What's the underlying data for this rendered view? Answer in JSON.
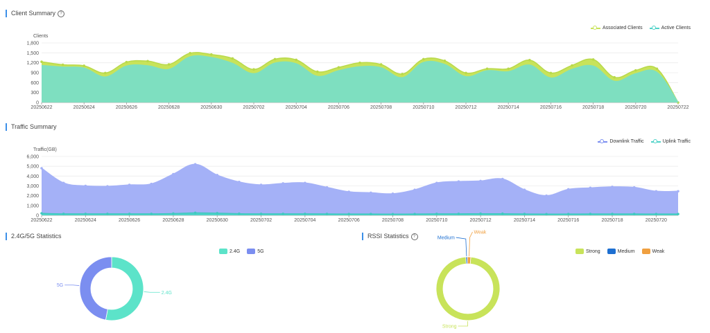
{
  "client_summary": {
    "title": "Client Summary",
    "help_icon": "question-circle-icon",
    "legend": [
      {
        "label": "Associated Clients",
        "color": "#c8e35a"
      },
      {
        "label": "Active Clients",
        "color": "#4fd2c8"
      }
    ],
    "chart_data": {
      "type": "area",
      "ylabel": "Clients",
      "ylim": [
        0,
        1800
      ],
      "yticks": [
        "0",
        "300",
        "600",
        "900",
        "1,200",
        "1,500",
        "1,800"
      ],
      "x": [
        "20250622",
        "20250623",
        "20250624",
        "20250625",
        "20250626",
        "20250627",
        "20250628",
        "20250629",
        "20250630",
        "20250701",
        "20250702",
        "20250703",
        "20250704",
        "20250705",
        "20250706",
        "20250707",
        "20250708",
        "20250709",
        "20250710",
        "20250711",
        "20250712",
        "20250713",
        "20250714",
        "20250715",
        "20250716",
        "20250717",
        "20250718",
        "20250719",
        "20250720",
        "20250721",
        "20250722"
      ],
      "xtick_labels": [
        "20250622",
        "20250624",
        "20250626",
        "20250628",
        "20250630",
        "20250702",
        "20250704",
        "20250706",
        "20250708",
        "20250710",
        "20250712",
        "20250714",
        "20250716",
        "20250718",
        "20250720",
        "20250722"
      ],
      "series": [
        {
          "name": "Associated Clients",
          "color": "#c8e35a",
          "values": [
            1230,
            1140,
            1110,
            890,
            1220,
            1250,
            1150,
            1490,
            1450,
            1330,
            1000,
            1310,
            1290,
            930,
            1060,
            1200,
            1150,
            860,
            1310,
            1260,
            890,
            1020,
            1020,
            1280,
            890,
            1120,
            1300,
            760,
            970,
            1020,
            0
          ]
        },
        {
          "name": "Active Clients",
          "color": "#7edfc0",
          "values": [
            1120,
            1070,
            1040,
            770,
            1100,
            1110,
            1000,
            1380,
            1360,
            1180,
            870,
            1190,
            1170,
            790,
            960,
            1080,
            1050,
            750,
            1210,
            1150,
            780,
            960,
            930,
            1130,
            740,
            1000,
            1100,
            640,
            870,
            910,
            0
          ]
        }
      ]
    }
  },
  "traffic_summary": {
    "title": "Traffic Summary",
    "legend": [
      {
        "label": "Downlink Traffic",
        "color": "#7b8ef0"
      },
      {
        "label": "Uplink Traffic",
        "color": "#4fd2c8"
      }
    ],
    "chart_data": {
      "type": "area",
      "ylabel": "Traffic(GB)",
      "ylim": [
        0,
        6000
      ],
      "yticks": [
        "0",
        "1,000",
        "2,000",
        "3,000",
        "4,000",
        "5,000",
        "6,000"
      ],
      "x": [
        "20250622",
        "20250623",
        "20250624",
        "20250625",
        "20250626",
        "20250627",
        "20250628",
        "20250629",
        "20250630",
        "20250701",
        "20250702",
        "20250703",
        "20250704",
        "20250705",
        "20250706",
        "20250707",
        "20250708",
        "20250709",
        "20250710",
        "20250711",
        "20250712",
        "20250713",
        "20250714",
        "20250715",
        "20250716",
        "20250717",
        "20250718",
        "20250719",
        "20250720",
        "20250721"
      ],
      "xtick_labels": [
        "20250622",
        "20250624",
        "20250626",
        "20250628",
        "20250630",
        "20250702",
        "20250704",
        "20250706",
        "20250708",
        "20250710",
        "20250712",
        "20250714",
        "20250716",
        "20250718",
        "20250720"
      ],
      "series": [
        {
          "name": "Downlink Traffic",
          "color": "#a4b1f7",
          "values": [
            4800,
            3300,
            3000,
            2950,
            3100,
            3200,
            4200,
            5200,
            4100,
            3400,
            3100,
            3250,
            3300,
            2850,
            2400,
            2300,
            2200,
            2600,
            3300,
            3450,
            3500,
            3700,
            2600,
            2000,
            2650,
            2800,
            2900,
            2850,
            2450,
            2450
          ]
        },
        {
          "name": "Uplink Traffic",
          "color": "#4fd2c8",
          "values": [
            200,
            150,
            150,
            150,
            150,
            150,
            180,
            250,
            220,
            160,
            150,
            150,
            150,
            140,
            130,
            130,
            120,
            130,
            150,
            150,
            160,
            160,
            140,
            120,
            130,
            140,
            140,
            140,
            130,
            130
          ]
        }
      ]
    }
  },
  "band_stats": {
    "title": "2.4G/5G Statistics",
    "legend": [
      {
        "label": "2.4G",
        "color": "#5ce3c9"
      },
      {
        "label": "5G",
        "color": "#7b8ef0"
      }
    ],
    "chart_data": {
      "type": "pie",
      "slices": [
        {
          "label": "2.4G",
          "value": 53,
          "color": "#5ce3c9"
        },
        {
          "label": "5G",
          "value": 47,
          "color": "#7b8ef0"
        }
      ]
    }
  },
  "rssi_stats": {
    "title": "RSSI Statistics",
    "help_icon": "question-circle-icon",
    "legend": [
      {
        "label": "Strong",
        "color": "#c8e35a"
      },
      {
        "label": "Medium",
        "color": "#1d6fd1"
      },
      {
        "label": "Weak",
        "color": "#f0a040"
      }
    ],
    "chart_data": {
      "type": "pie",
      "slices": [
        {
          "label": "Strong",
          "value": 97.5,
          "color": "#c8e35a"
        },
        {
          "label": "Medium",
          "value": 0.8,
          "color": "#1d6fd1"
        },
        {
          "label": "Weak",
          "value": 1.7,
          "color": "#f0a040"
        }
      ]
    }
  }
}
